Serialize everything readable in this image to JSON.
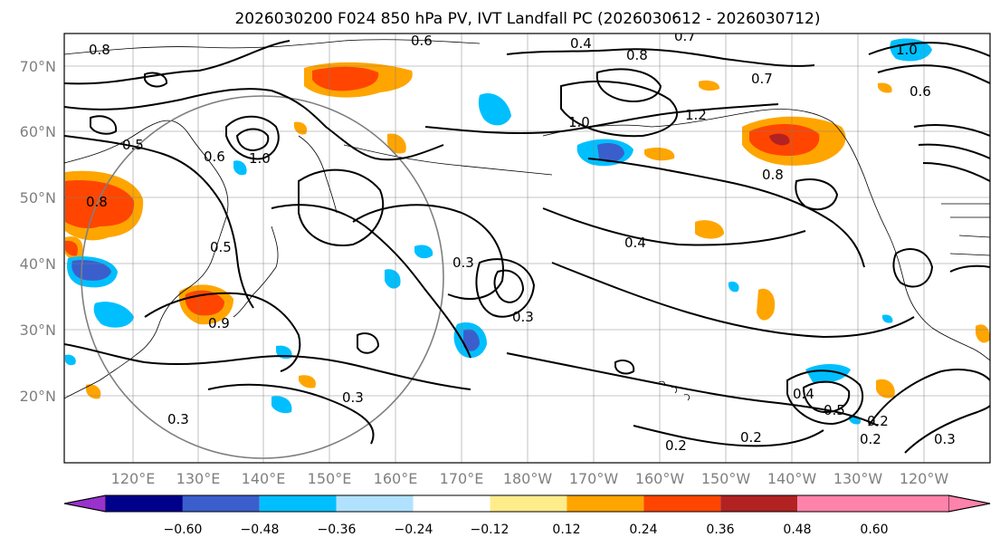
{
  "title": "2026030200 F024 850 hPa PV, IVT Landfall PC (2026030612 - 2026030712)",
  "lat_ticks": [
    "20°N",
    "30°N",
    "40°N",
    "50°N",
    "60°N",
    "70°N"
  ],
  "lon_ticks": [
    "120°E",
    "130°E",
    "140°E",
    "150°E",
    "160°E",
    "170°E",
    "180°W",
    "170°W",
    "160°W",
    "150°W",
    "140°W",
    "130°W",
    "120°W"
  ],
  "colorbar": {
    "tick_labels": [
      "−0.60",
      "−0.48",
      "−0.36",
      "−0.24",
      "−0.12",
      "0.12",
      "0.24",
      "0.36",
      "0.48",
      "0.60"
    ],
    "colors": [
      "#9932cc",
      "#00008b",
      "#3a5fcd",
      "#00bfff",
      "#b0e2ff",
      "#ffffff",
      "#ffec8b",
      "#ffa500",
      "#ff4500",
      "#b22222",
      "#ff82ab"
    ]
  },
  "contour_labels": [
    "0.4",
    "0.7",
    "0.8",
    "1.0",
    "1.2",
    "0.6",
    "0.8",
    "0.5",
    "0.6",
    "1.0",
    "0.5",
    "0.4",
    "0.3",
    "0.3",
    "0.3",
    "0.2",
    "0.2",
    "0.2",
    "0.2",
    "0.5",
    "0.4",
    "0.3",
    "0.8",
    "0.7",
    "1.0",
    "0.6",
    "0.8",
    "0.9",
    "0.3"
  ]
}
